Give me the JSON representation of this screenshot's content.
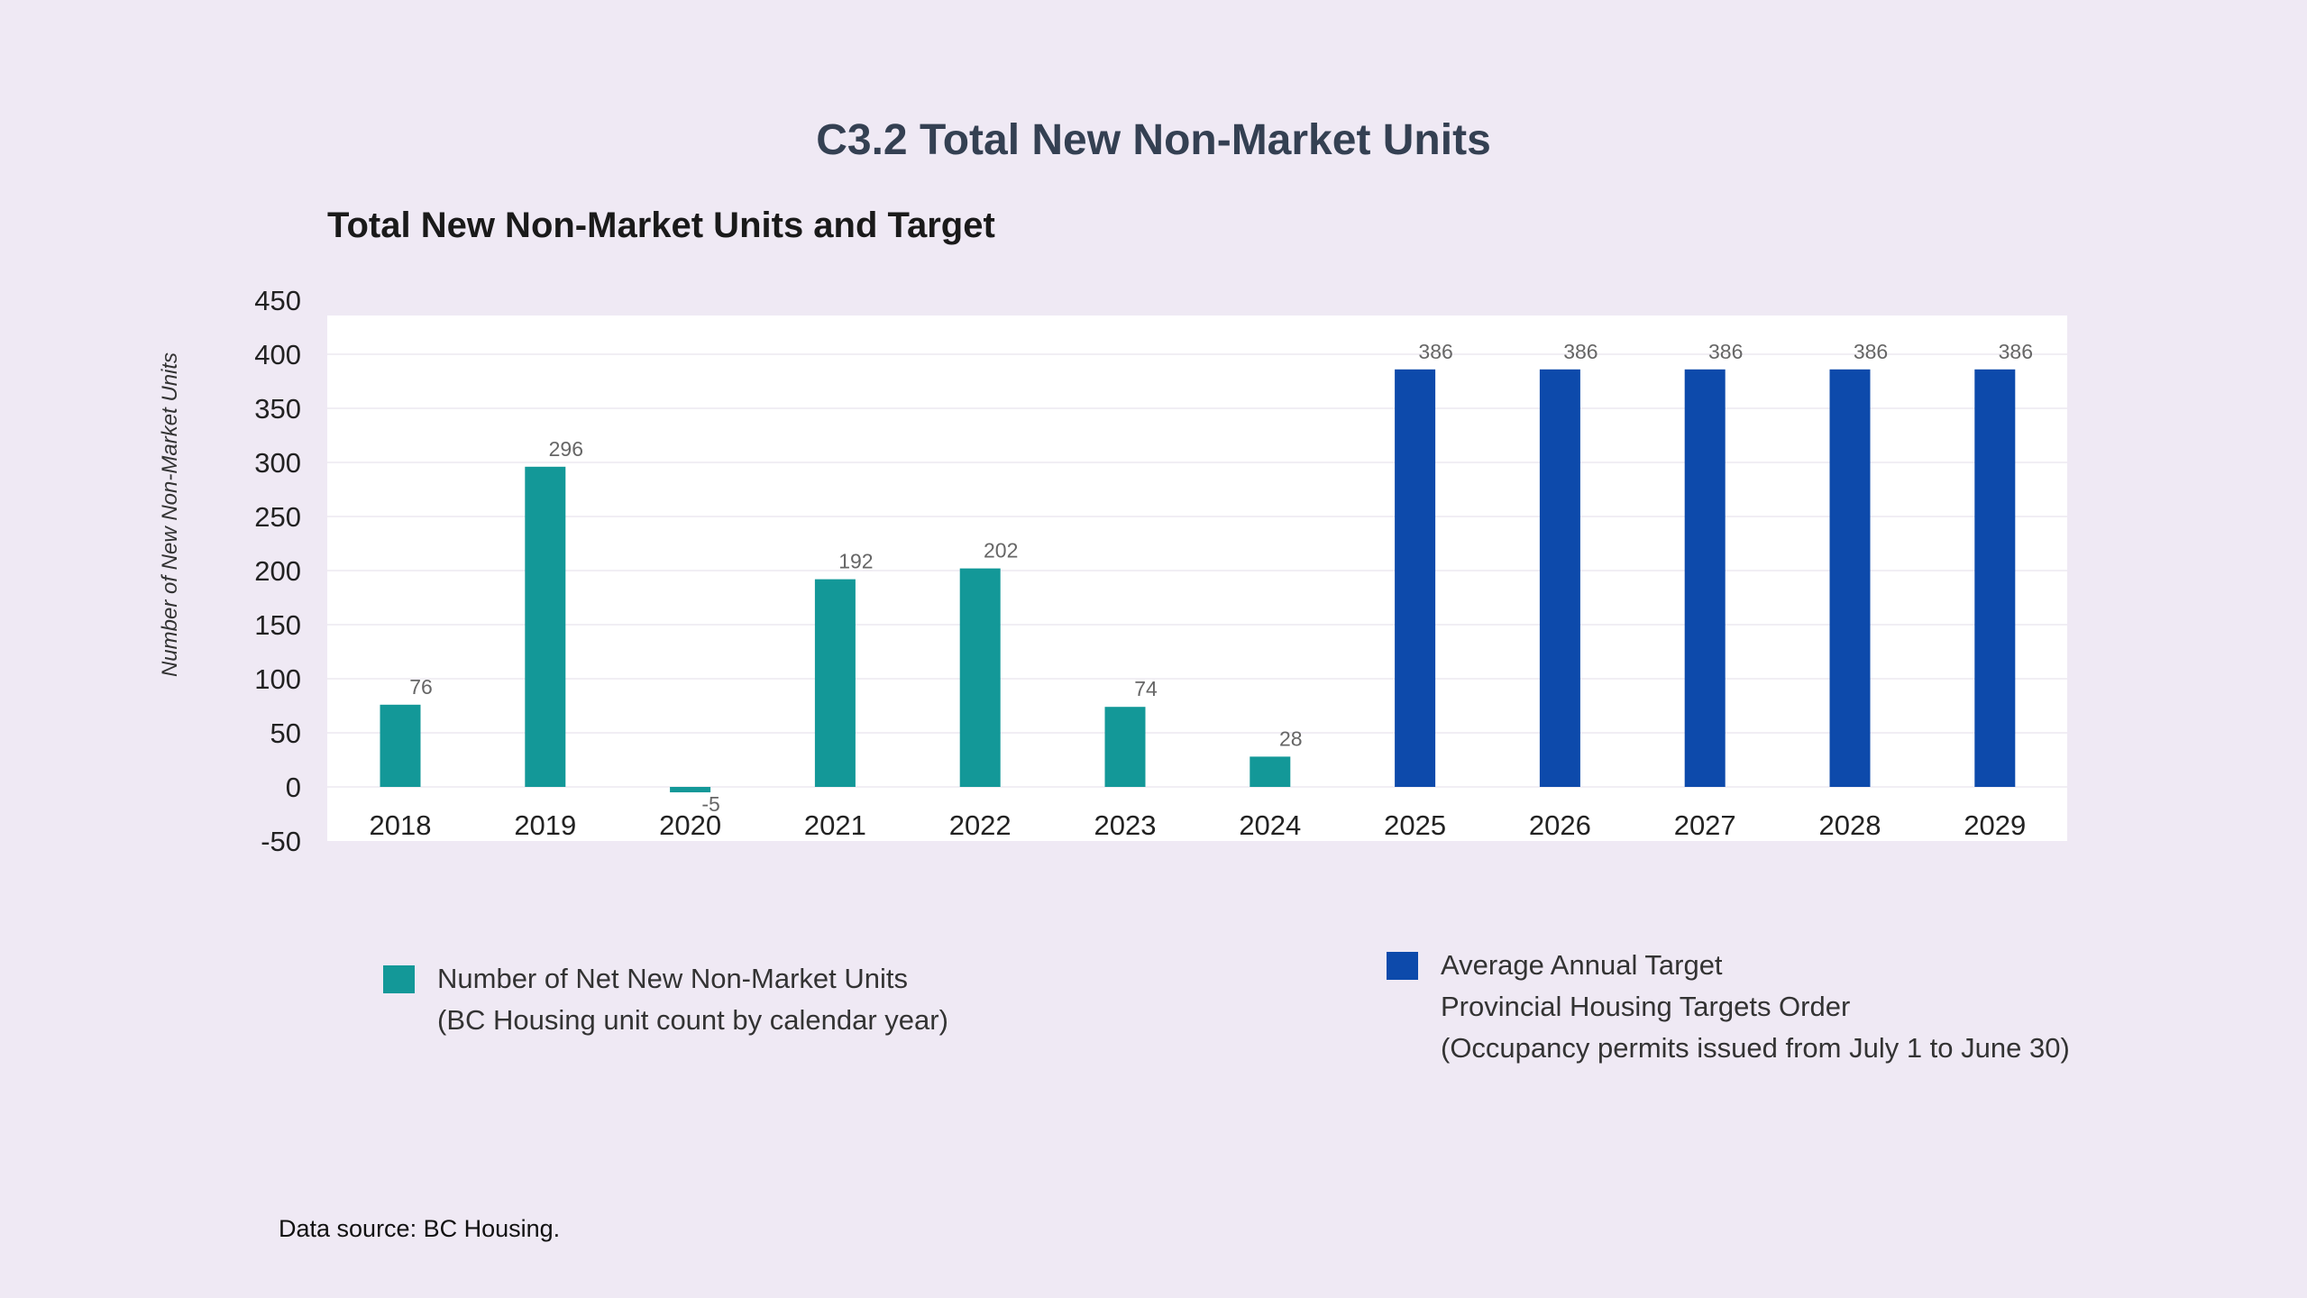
{
  "page": {
    "title": "C3.2 Total New Non-Market Units",
    "source": "Data source: BC Housing."
  },
  "colors": {
    "background": "#efe9f4",
    "plot_background": "#ffffff",
    "actual": "#139898",
    "target": "#0d4aab"
  },
  "chart_data": {
    "type": "bar",
    "title": "Total New Non-Market Units and Target",
    "xlabel": "",
    "ylabel": "Number of New Non-Market Units",
    "ylim": [
      -50,
      450
    ],
    "yticks": [
      -50,
      0,
      50,
      100,
      150,
      200,
      250,
      300,
      350,
      400,
      450
    ],
    "grid": true,
    "categories": [
      "2018",
      "2019",
      "2020",
      "2021",
      "2022",
      "2023",
      "2024",
      "2025",
      "2026",
      "2027",
      "2028",
      "2029"
    ],
    "series": [
      {
        "name": "Number of Net New Non-Market Units (BC Housing unit count by calendar year)",
        "legend_lines": [
          "Number of Net New Non-Market Units",
          "(BC Housing unit count by calendar year)"
        ],
        "color": "#139898",
        "values": [
          76,
          296,
          -5,
          192,
          202,
          74,
          28,
          null,
          null,
          null,
          null,
          null
        ]
      },
      {
        "name": "Average Annual Target Provincial Housing Targets Order (Occupancy permits issued from July 1 to June 30)",
        "legend_lines": [
          "Average Annual Target",
          "Provincial Housing Targets Order",
          "(Occupancy permits issued from July 1 to June 30)"
        ],
        "color": "#0d4aab",
        "values": [
          null,
          null,
          null,
          null,
          null,
          null,
          null,
          386,
          386,
          386,
          386,
          386
        ]
      }
    ],
    "legend_position": "bottom"
  }
}
